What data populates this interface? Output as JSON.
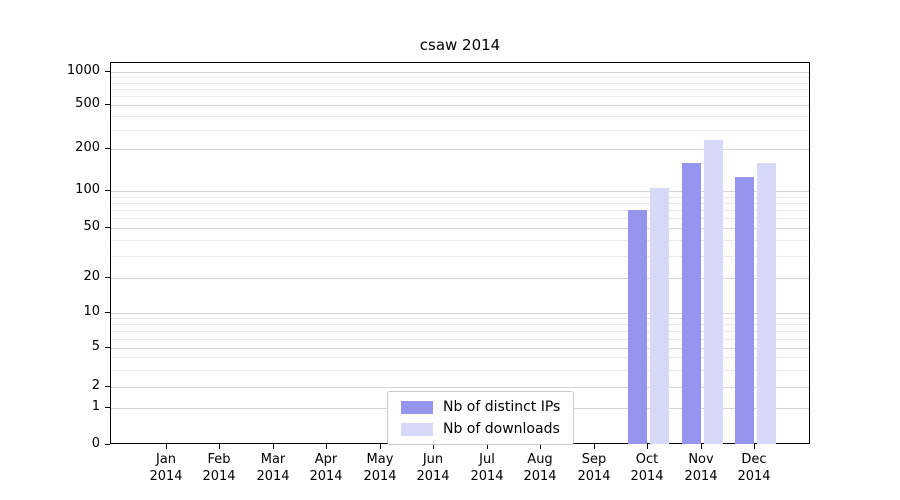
{
  "chart_data": {
    "type": "bar",
    "title": "csaw 2014",
    "x_tick_labels": [
      "Jan\n2014",
      "Feb\n2014",
      "Mar\n2014",
      "Apr\n2014",
      "May\n2014",
      "Jun\n2014",
      "Jul\n2014",
      "Aug\n2014",
      "Sep\n2014",
      "Oct\n2014",
      "Nov\n2014",
      "Dec\n2014"
    ],
    "y_scale": "symlog",
    "y_ticks": [
      0,
      1,
      2,
      5,
      10,
      20,
      50,
      100,
      200,
      500,
      1000
    ],
    "ylim": [
      0,
      1300
    ],
    "grid": true,
    "legend_position": "lower center",
    "series": [
      {
        "name": "Nb of distinct IPs",
        "color": "#9595ee",
        "values": [
          null,
          null,
          null,
          null,
          null,
          null,
          null,
          null,
          null,
          70,
          160,
          125
        ]
      },
      {
        "name": "Nb of downloads",
        "color": "#d8d8f8",
        "values": [
          null,
          null,
          null,
          null,
          null,
          null,
          null,
          null,
          null,
          105,
          240,
          160
        ]
      }
    ]
  }
}
